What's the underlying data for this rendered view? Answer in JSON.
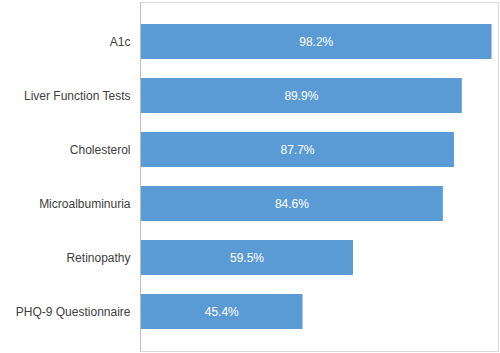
{
  "chart_data": {
    "type": "bar",
    "orientation": "horizontal",
    "categories": [
      "A1c",
      "Liver Function Tests",
      "Cholesterol",
      "Microalbuminuria",
      "Retinopathy",
      "PHQ-9 Questionnaire"
    ],
    "values": [
      98.2,
      89.9,
      87.7,
      84.6,
      59.5,
      45.4
    ],
    "value_labels": [
      "98.2%",
      "89.9%",
      "87.7%",
      "84.6%",
      "59.5%",
      "45.4%"
    ],
    "data_labels": true,
    "color": "#5b9bd5",
    "xlim": [
      0,
      100
    ],
    "xticks": [],
    "tick_labels": "y",
    "grid": false
  }
}
